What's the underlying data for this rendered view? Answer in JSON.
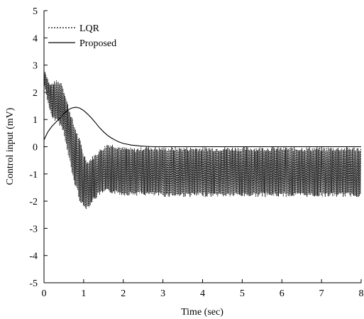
{
  "chart_data": {
    "type": "line",
    "title": "",
    "xlabel": "Time (sec)",
    "ylabel": "Control input (mV)",
    "xlim": [
      0,
      8
    ],
    "ylim": [
      -5,
      5
    ],
    "x_ticks": [
      "0",
      "1",
      "2",
      "3",
      "4",
      "5",
      "6",
      "7",
      "8"
    ],
    "y_ticks": [
      "5",
      "4",
      "3",
      "2",
      "1",
      "0",
      "-1",
      "-2",
      "-3",
      "-4",
      "-5"
    ],
    "grid": false,
    "legend": "top-left",
    "series": [
      {
        "name": "LQR",
        "style": "dotted",
        "kind": "oscillating-band",
        "upper": [
          [
            0,
            2.9
          ],
          [
            0.15,
            2.3
          ],
          [
            0.3,
            2.45
          ],
          [
            0.45,
            2.4
          ],
          [
            0.6,
            1.6
          ],
          [
            0.75,
            0.9
          ],
          [
            0.9,
            0.3
          ],
          [
            1.0,
            -0.2
          ],
          [
            1.1,
            -0.5
          ],
          [
            1.25,
            -0.3
          ],
          [
            1.4,
            -0.1
          ],
          [
            1.6,
            0.15
          ],
          [
            1.8,
            0.1
          ],
          [
            2.0,
            0.0
          ],
          [
            2.3,
            -0.05
          ],
          [
            2.6,
            0.05
          ],
          [
            2.8,
            0.0
          ],
          [
            3.0,
            0.0
          ],
          [
            8.0,
            0.0
          ]
        ],
        "lower": [
          [
            0,
            2.3
          ],
          [
            0.1,
            1.6
          ],
          [
            0.2,
            1.0
          ],
          [
            0.35,
            0.9
          ],
          [
            0.5,
            0.5
          ],
          [
            0.6,
            -0.3
          ],
          [
            0.75,
            -1.3
          ],
          [
            0.9,
            -2.0
          ],
          [
            1.0,
            -2.3
          ],
          [
            1.1,
            -2.3
          ],
          [
            1.25,
            -2.0
          ],
          [
            1.4,
            -1.8
          ],
          [
            1.6,
            -1.7
          ],
          [
            2.0,
            -1.8
          ],
          [
            2.5,
            -1.8
          ],
          [
            3.0,
            -1.85
          ],
          [
            8.0,
            -1.85
          ]
        ]
      },
      {
        "name": "Proposed",
        "style": "solid",
        "points": [
          [
            0,
            0.25
          ],
          [
            0.1,
            0.55
          ],
          [
            0.2,
            0.75
          ],
          [
            0.3,
            0.9
          ],
          [
            0.4,
            1.05
          ],
          [
            0.5,
            1.2
          ],
          [
            0.6,
            1.35
          ],
          [
            0.7,
            1.42
          ],
          [
            0.8,
            1.45
          ],
          [
            0.9,
            1.42
          ],
          [
            1.0,
            1.33
          ],
          [
            1.1,
            1.2
          ],
          [
            1.2,
            1.05
          ],
          [
            1.3,
            0.88
          ],
          [
            1.4,
            0.7
          ],
          [
            1.5,
            0.55
          ],
          [
            1.6,
            0.42
          ],
          [
            1.7,
            0.32
          ],
          [
            1.8,
            0.24
          ],
          [
            1.9,
            0.17
          ],
          [
            2.0,
            0.12
          ],
          [
            2.2,
            0.06
          ],
          [
            2.4,
            0.03
          ],
          [
            2.6,
            0.01
          ],
          [
            2.8,
            0.0
          ],
          [
            3.0,
            0.0
          ],
          [
            4.0,
            0.0
          ],
          [
            5.0,
            0.0
          ],
          [
            6.0,
            0.0
          ],
          [
            7.0,
            0.0
          ],
          [
            8.0,
            0.0
          ]
        ]
      }
    ]
  }
}
